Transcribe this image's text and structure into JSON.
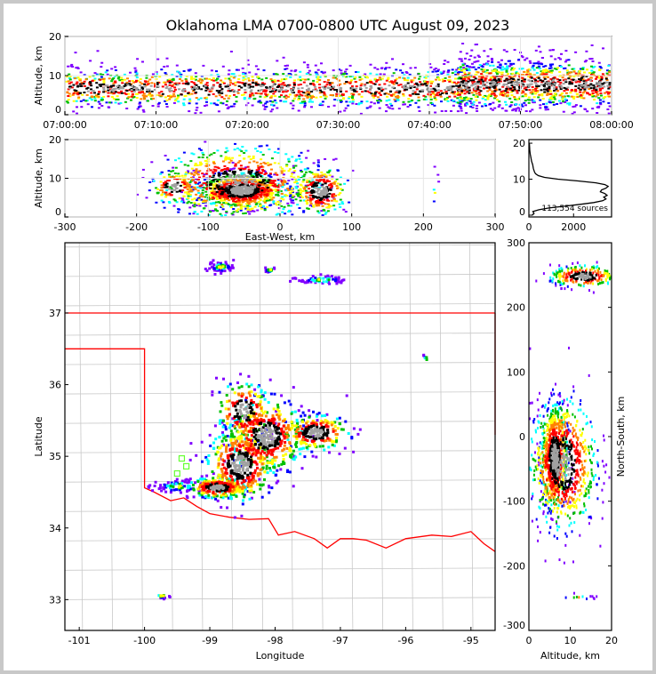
{
  "title": "Oklahoma LMA 0700-0800 UTC August 09, 2023",
  "colors": {
    "density": [
      "#8000ff",
      "#0000ff",
      "#00ffff",
      "#00c000",
      "#ffff00",
      "#ff8000",
      "#ff0000",
      "#000000",
      "#a0a0a0"
    ],
    "state_border": "#ff0000",
    "county": "#c8c8c8",
    "station": "#66ff33"
  },
  "chart_data": [
    {
      "id": "time_height",
      "type": "heatmap",
      "xlabel": "",
      "ylabel": "Altitude, km",
      "xlim": [
        "07:00:00",
        "08:00:00"
      ],
      "ylim": [
        0,
        20
      ],
      "xticks": [
        "07:00:00",
        "07:10:00",
        "07:20:00",
        "07:30:00",
        "07:40:00",
        "07:50:00",
        "08:00:00"
      ],
      "yticks": [
        "0",
        "10",
        "20"
      ],
      "clusters": [
        {
          "t": [
            0,
            45
          ],
          "alt": 7,
          "sd": 2.8,
          "n": 1600
        },
        {
          "t": [
            43,
            60
          ],
          "alt": 8,
          "sd": 3.5,
          "n": 1100
        }
      ]
    },
    {
      "id": "ew_alt",
      "type": "heatmap",
      "xlabel": "East-West, km",
      "ylabel": "Altitude, km",
      "xlim": [
        -300,
        300
      ],
      "ylim": [
        0,
        20
      ],
      "xticks": [
        "-300",
        "-200",
        "-100",
        "0",
        "100",
        "200",
        "300"
      ],
      "yticks": [
        "0",
        "10",
        "20"
      ],
      "clusters": [
        {
          "x": -55,
          "y": 7,
          "sx": 30,
          "sy": 2.2,
          "n": 900
        },
        {
          "x": -60,
          "y": 9,
          "sx": 55,
          "sy": 4.5,
          "n": 700
        },
        {
          "x": 55,
          "y": 7,
          "sx": 18,
          "sy": 3,
          "n": 300
        },
        {
          "x": -150,
          "y": 8,
          "sx": 15,
          "sy": 2,
          "n": 120
        },
        {
          "x": 215,
          "y": 7,
          "sx": 3,
          "sy": 3,
          "n": 6
        }
      ]
    },
    {
      "id": "alt_hist",
      "type": "line",
      "xlabel": "",
      "ylabel": "",
      "xlim": [
        0,
        3700
      ],
      "ylim": [
        -0.5,
        21
      ],
      "xticks": [
        "0",
        "2000"
      ],
      "yticks": [
        "0",
        "10",
        "20"
      ],
      "annotation": "113,554 sources",
      "alt": [
        0,
        0.5,
        1,
        1.5,
        2,
        2.5,
        3,
        3.5,
        4,
        4.5,
        5,
        5.5,
        6,
        6.5,
        7,
        7.5,
        8,
        8.5,
        9,
        9.5,
        10,
        10.5,
        11,
        11.5,
        12,
        13,
        14,
        15,
        16,
        17,
        18,
        19,
        20
      ],
      "counts": [
        150,
        230,
        180,
        450,
        900,
        1600,
        2300,
        2900,
        3300,
        3450,
        3350,
        3500,
        3400,
        3200,
        3250,
        3450,
        3550,
        3400,
        3000,
        2200,
        1300,
        700,
        420,
        300,
        250,
        200,
        170,
        120,
        90,
        60,
        40,
        30,
        20
      ]
    },
    {
      "id": "plan_view",
      "type": "heatmap",
      "xlabel": "Longitude",
      "ylabel": "Latitude",
      "xlim": [
        -101.22,
        -94.63
      ],
      "ylim": [
        32.57,
        37.98
      ],
      "xticks": [
        "-101",
        "-100",
        "-99",
        "-98",
        "-97",
        "-96",
        "-95"
      ],
      "yticks": [
        "33",
        "34",
        "35",
        "36",
        "37"
      ],
      "clusters": [
        {
          "x": -98.9,
          "y": 34.58,
          "sx": 0.22,
          "sy": 0.07,
          "n": 260
        },
        {
          "x": -98.55,
          "y": 34.9,
          "sx": 0.25,
          "sy": 0.25,
          "n": 420
        },
        {
          "x": -98.15,
          "y": 35.3,
          "sx": 0.28,
          "sy": 0.25,
          "n": 420
        },
        {
          "x": -97.4,
          "y": 35.35,
          "sx": 0.25,
          "sy": 0.12,
          "n": 220
        },
        {
          "x": -98.5,
          "y": 35.65,
          "sx": 0.2,
          "sy": 0.2,
          "n": 160
        },
        {
          "x": -99.5,
          "y": 34.6,
          "sx": 0.2,
          "sy": 0.05,
          "n": 70
        },
        {
          "x": -98.85,
          "y": 37.66,
          "sx": 0.1,
          "sy": 0.04,
          "n": 60
        },
        {
          "x": -98.1,
          "y": 37.62,
          "sx": 0.05,
          "sy": 0.02,
          "n": 18
        },
        {
          "x": -97.3,
          "y": 37.48,
          "sx": 0.18,
          "sy": 0.03,
          "n": 60
        },
        {
          "x": -99.75,
          "y": 33.07,
          "sx": 0.06,
          "sy": 0.02,
          "n": 12
        },
        {
          "x": -95.7,
          "y": 36.38,
          "sx": 0.03,
          "sy": 0.03,
          "n": 6
        }
      ],
      "stations": [
        [
          -99.43,
          34.97
        ],
        [
          -99.36,
          34.86
        ],
        [
          -99.5,
          34.76
        ]
      ]
    },
    {
      "id": "ns_alt",
      "type": "heatmap",
      "xlabel": "Altitude, km",
      "ylabel": "North-South, km",
      "xlim": [
        0,
        20
      ],
      "ylim": [
        -300,
        300
      ],
      "xticks": [
        "0",
        "10",
        "20"
      ],
      "yticks": [
        "-300",
        "-200",
        "-100",
        "0",
        "100",
        "200",
        "300"
      ],
      "clusters": [
        {
          "x": 6,
          "y": -30,
          "sx": 1.6,
          "sy": 40,
          "n": 700
        },
        {
          "x": 8,
          "y": -40,
          "sx": 4,
          "sy": 50,
          "n": 700
        },
        {
          "x": 13,
          "y": 250,
          "sx": 4,
          "sy": 8,
          "n": 260
        },
        {
          "x": 12,
          "y": -247,
          "sx": 3,
          "sy": 2,
          "n": 12
        }
      ]
    }
  ]
}
